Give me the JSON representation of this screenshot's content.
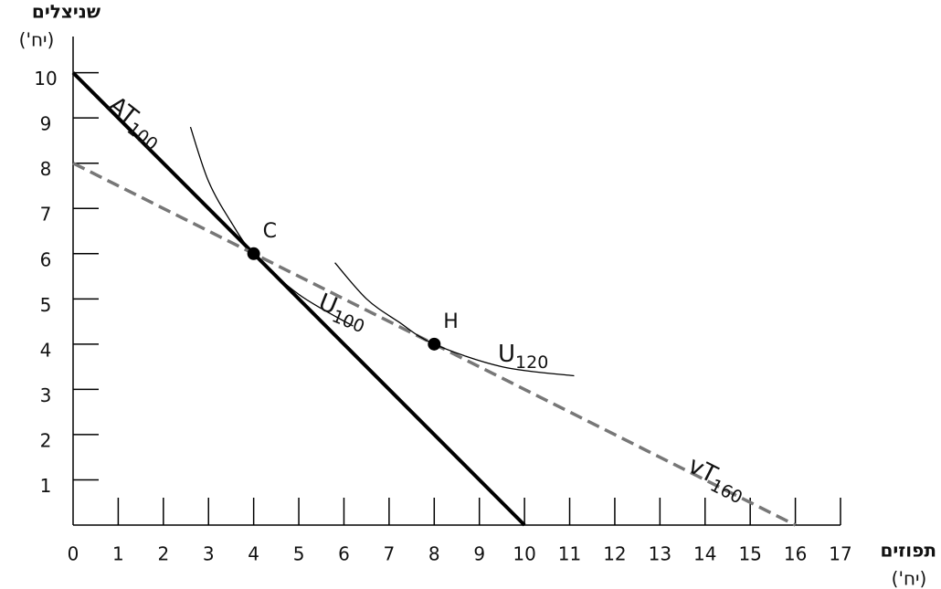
{
  "chart_data": {
    "type": "line",
    "y_axis_label": "שניצלים",
    "y_axis_unit": "(יח')",
    "x_axis_label": "תפוזים",
    "x_axis_unit": "(יח')",
    "xlim": [
      0,
      17
    ],
    "ylim": [
      0,
      10.8
    ],
    "xticks": [
      0,
      1,
      2,
      3,
      4,
      5,
      6,
      7,
      8,
      9,
      10,
      11,
      12,
      13,
      14,
      15,
      16,
      17
    ],
    "yticks": [
      1,
      2,
      3,
      4,
      5,
      6,
      7,
      8,
      9,
      10
    ],
    "series": [
      {
        "name": "AT",
        "subscript": "100",
        "color": "#000000",
        "style": "solid",
        "width": 4,
        "x": [
          0,
          10
        ],
        "y": [
          10,
          0
        ]
      },
      {
        "name": "vT",
        "subscript": "160",
        "color": "#777777",
        "style": "dashed",
        "width": 3.5,
        "x": [
          0,
          16
        ],
        "y": [
          8,
          0
        ]
      },
      {
        "name": "U",
        "subscript": "100",
        "color": "#000000",
        "style": "curve",
        "width": 1.3,
        "x": [
          2.6,
          3,
          3.5,
          4,
          5,
          6.2
        ],
        "y": [
          8.8,
          7.6,
          6.7,
          6,
          5.1,
          4.4
        ]
      },
      {
        "name": "U",
        "subscript": "120",
        "color": "#000000",
        "style": "curve",
        "width": 1.3,
        "x": [
          5.8,
          6.5,
          7.2,
          8,
          9.5,
          11.1
        ],
        "y": [
          5.8,
          5,
          4.5,
          4,
          3.5,
          3.3
        ]
      }
    ],
    "points": [
      {
        "label": "C",
        "x": 4,
        "y": 6
      },
      {
        "label": "H",
        "x": 8,
        "y": 4
      }
    ]
  }
}
